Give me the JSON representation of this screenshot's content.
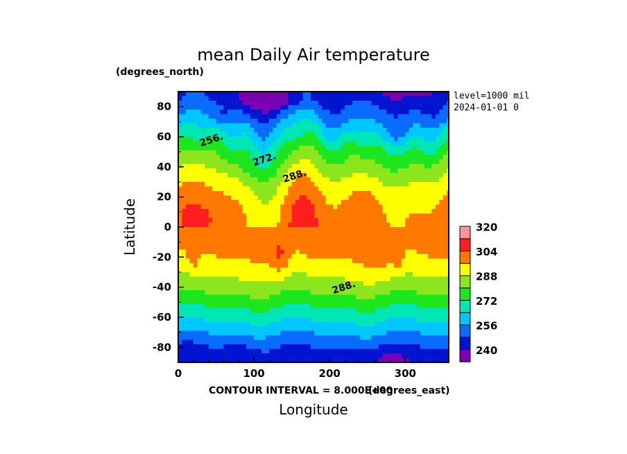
{
  "chart_data": {
    "type": "heatmap",
    "title": "mean Daily Air temperature",
    "xlabel": "Longitude",
    "ylabel": "Latitude",
    "x_units": "(degrees_east)",
    "y_units": "(degrees_north)",
    "xlim": [
      0,
      357.5
    ],
    "ylim": [
      -90,
      90
    ],
    "x_ticks": [
      0,
      100,
      200,
      300
    ],
    "y_ticks": [
      80,
      60,
      40,
      20,
      0,
      -20,
      -40,
      -60,
      -80
    ],
    "annotations": {
      "level": "level=1000 mil",
      "date": "2024-01-01 0",
      "contour_interval": "CONTOUR INTERVAL = 8.000E+00"
    },
    "contour_labels": [
      {
        "text": "256.",
        "lon": 45,
        "lat": 56
      },
      {
        "text": "272.",
        "lon": 115,
        "lat": 43
      },
      {
        "text": "288.",
        "lon": 155,
        "lat": 32
      },
      {
        "text": "288.",
        "lon": 220,
        "lat": -42
      }
    ],
    "color_levels": [
      232,
      240,
      248,
      256,
      264,
      272,
      280,
      288,
      296,
      304,
      312,
      320
    ],
    "colors": [
      "#7a00b4",
      "#0014d2",
      "#0a6cff",
      "#00c8ff",
      "#00e6b4",
      "#1ee61e",
      "#8ce61e",
      "#ffff00",
      "#ff7800",
      "#ff1e1e",
      "#ff9696"
    ],
    "colorbar_labels": [
      "320",
      "304",
      "288",
      "272",
      "256",
      "240"
    ],
    "grid": false
  }
}
